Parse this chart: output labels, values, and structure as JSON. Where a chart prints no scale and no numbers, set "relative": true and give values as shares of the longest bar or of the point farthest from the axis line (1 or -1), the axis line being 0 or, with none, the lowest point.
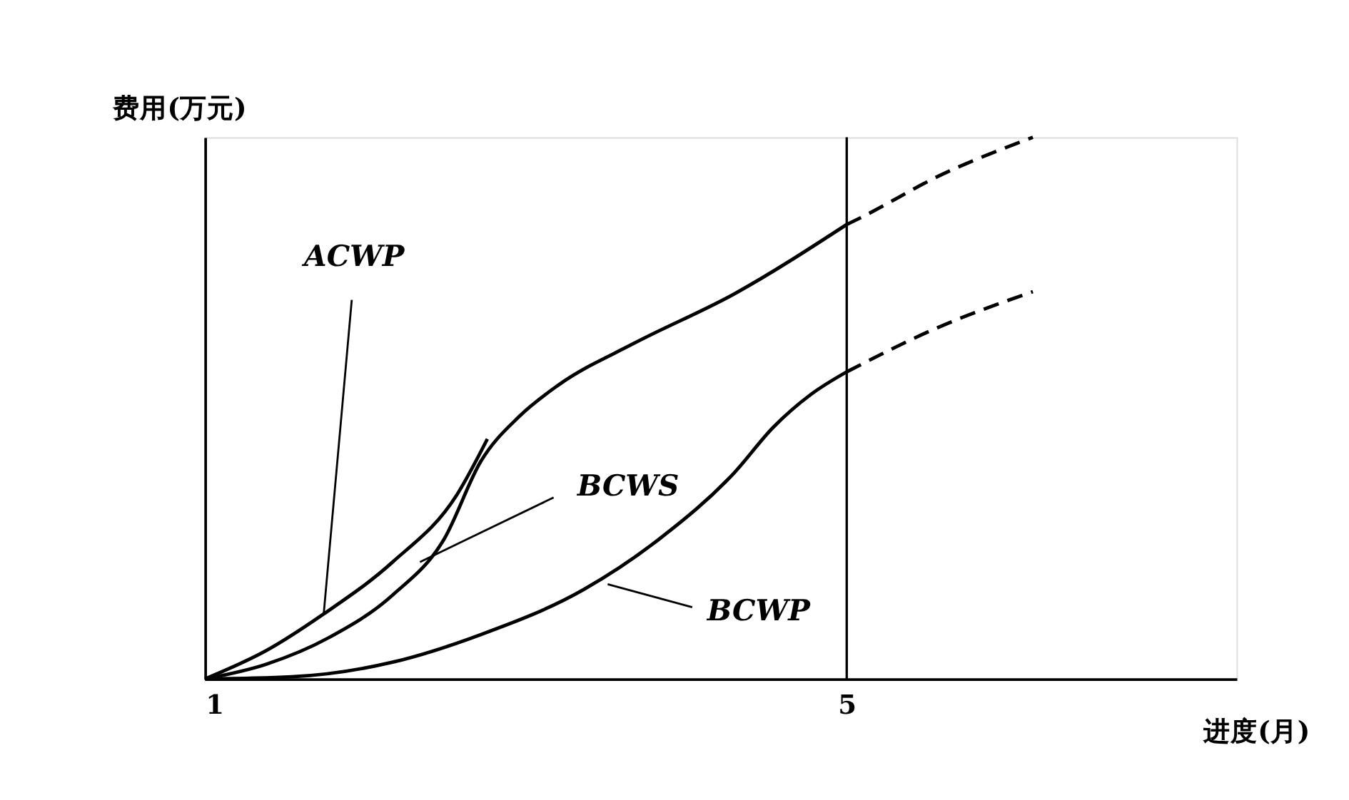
{
  "chart_data": {
    "type": "line",
    "relative": true,
    "xlabel": "进度(月)",
    "ylabel": "费用(万元)",
    "xlim": [
      1,
      7.43
    ],
    "xticks": [
      1,
      5
    ],
    "series": [
      {
        "color": "#000000",
        "line_style": "solid",
        "x": [
          1,
          1.38,
          1.74,
          2.17,
          2.57,
          2.76
        ],
        "values": [
          0,
          0.052,
          0.12,
          0.216,
          0.34,
          0.443
        ]
      },
      {
        "color": "#000000",
        "line_style": "solid",
        "x": [
          1,
          1.38,
          1.77,
          2.17,
          2.49,
          2.72,
          2.96,
          3.2,
          3.67,
          4.3,
          5
        ],
        "values": [
          0,
          0.027,
          0.076,
          0.155,
          0.258,
          0.402,
          0.485,
          0.542,
          0.619,
          0.711,
          0.839
        ]
      },
      {
        "color": "#000000",
        "line_style": "dashed",
        "x": [
          5,
          5.09,
          5.57,
          6.16
        ],
        "values": [
          0.839,
          0.852,
          0.928,
          1
        ]
      },
      {
        "color": "#000000",
        "line_style": "solid",
        "x": [
          1,
          1.54,
          2.17,
          2.72,
          3.36,
          3.83,
          4.3,
          4.54,
          4.78,
          5
        ],
        "values": [
          0,
          0.004,
          0.031,
          0.082,
          0.165,
          0.258,
          0.381,
          0.464,
          0.526,
          0.567
        ]
      },
      {
        "color": "#000000",
        "line_style": "dashed",
        "x": [
          5,
          5.57,
          6.16
        ],
        "values": [
          0.567,
          0.649,
          0.715
        ]
      }
    ],
    "ref_lines": [
      {
        "axis": "x",
        "value": 5,
        "color": "#000000"
      }
    ],
    "annotations": [
      {
        "text": "ACWP",
        "x": 1.74,
        "y": 0.12
      },
      {
        "text": "BCWS",
        "x": 2.34,
        "y": 0.216
      },
      {
        "text": "BCWP",
        "x": 3.51,
        "y": 0.175
      }
    ]
  }
}
